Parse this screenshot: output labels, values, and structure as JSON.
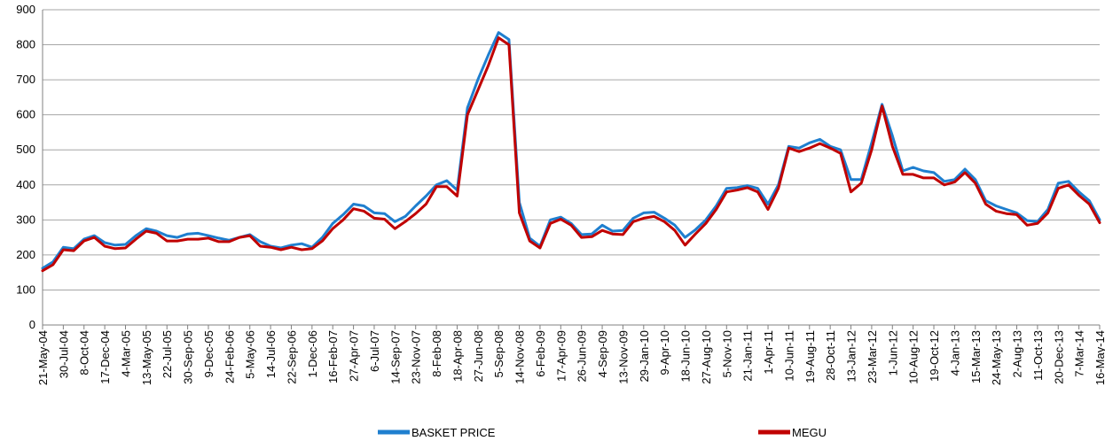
{
  "chart_data": {
    "type": "line",
    "title": "",
    "xlabel": "",
    "ylabel": "",
    "ylim": [
      0,
      900
    ],
    "yticks": [
      0,
      100,
      200,
      300,
      400,
      500,
      600,
      700,
      800,
      900
    ],
    "grid": "horizontal",
    "legend_position": "bottom",
    "x_tick_labels": [
      "21-May-04",
      "30-Jul-04",
      "8-Oct-04",
      "17-Dec-04",
      "4-Mar-05",
      "13-May-05",
      "22-Jul-05",
      "30-Sep-05",
      "9-Dec-05",
      "24-Feb-06",
      "5-May-06",
      "14-Jul-06",
      "22-Sep-06",
      "1-Dec-06",
      "16-Feb-07",
      "27-Apr-07",
      "6-Jul-07",
      "14-Sep-07",
      "23-Nov-07",
      "8-Feb-08",
      "18-Apr-08",
      "27-Jun-08",
      "5-Sep-08",
      "14-Nov-08",
      "6-Feb-09",
      "17-Apr-09",
      "26-Jun-09",
      "4-Sep-09",
      "13-Nov-09",
      "29-Jan-10",
      "9-Apr-10",
      "18-Jun-10",
      "27-Aug-10",
      "5-Nov-10",
      "21-Jan-11",
      "1-Apr-11",
      "10-Jun-11",
      "19-Aug-11",
      "28-Oct-11",
      "13-Jan-12",
      "23-Mar-12",
      "1-Jun-12",
      "10-Aug-12",
      "19-Oct-12",
      "4-Jan-13",
      "15-Mar-13",
      "24-May-13",
      "2-Aug-13",
      "11-Oct-13",
      "20-Dec-13",
      "7-Mar-14",
      "16-May-14"
    ],
    "x_index_range": [
      0,
      51
    ],
    "series": [
      {
        "name": "BASKET PRICE",
        "color": "#1f7fcf",
        "points": [
          [
            0,
            162
          ],
          [
            0.5,
            180
          ],
          [
            1,
            222
          ],
          [
            1.5,
            218
          ],
          [
            2,
            245
          ],
          [
            2.5,
            255
          ],
          [
            3,
            235
          ],
          [
            3.5,
            228
          ],
          [
            4,
            230
          ],
          [
            4.5,
            255
          ],
          [
            5,
            275
          ],
          [
            5.5,
            268
          ],
          [
            6,
            255
          ],
          [
            6.5,
            250
          ],
          [
            7,
            260
          ],
          [
            7.5,
            262
          ],
          [
            8,
            255
          ],
          [
            8.5,
            248
          ],
          [
            9,
            242
          ],
          [
            9.5,
            250
          ],
          [
            10,
            258
          ],
          [
            10.5,
            238
          ],
          [
            11,
            225
          ],
          [
            11.5,
            220
          ],
          [
            12,
            228
          ],
          [
            12.5,
            232
          ],
          [
            13,
            222
          ],
          [
            13.5,
            250
          ],
          [
            14,
            290
          ],
          [
            14.5,
            315
          ],
          [
            15,
            345
          ],
          [
            15.5,
            340
          ],
          [
            16,
            320
          ],
          [
            16.5,
            318
          ],
          [
            17,
            295
          ],
          [
            17.5,
            310
          ],
          [
            18,
            340
          ],
          [
            18.5,
            368
          ],
          [
            19,
            400
          ],
          [
            19.5,
            412
          ],
          [
            20,
            385
          ],
          [
            20.5,
            620
          ],
          [
            21,
            700
          ],
          [
            21.5,
            770
          ],
          [
            22,
            835
          ],
          [
            22.5,
            815
          ],
          [
            23,
            350
          ],
          [
            23.5,
            248
          ],
          [
            24,
            225
          ],
          [
            24.5,
            300
          ],
          [
            25,
            308
          ],
          [
            25.5,
            290
          ],
          [
            26,
            258
          ],
          [
            26.5,
            260
          ],
          [
            27,
            285
          ],
          [
            27.5,
            268
          ],
          [
            28,
            270
          ],
          [
            28.5,
            305
          ],
          [
            29,
            320
          ],
          [
            29.5,
            322
          ],
          [
            30,
            305
          ],
          [
            30.5,
            285
          ],
          [
            31,
            250
          ],
          [
            31.5,
            272
          ],
          [
            32,
            300
          ],
          [
            32.5,
            340
          ],
          [
            33,
            390
          ],
          [
            33.5,
            392
          ],
          [
            34,
            398
          ],
          [
            34.5,
            390
          ],
          [
            35,
            345
          ],
          [
            35.5,
            400
          ],
          [
            36,
            510
          ],
          [
            36.5,
            505
          ],
          [
            37,
            520
          ],
          [
            37.5,
            530
          ],
          [
            38,
            510
          ],
          [
            38.5,
            500
          ],
          [
            39,
            415
          ],
          [
            39.5,
            415
          ],
          [
            40,
            520
          ],
          [
            40.5,
            630
          ],
          [
            41,
            540
          ],
          [
            41.5,
            440
          ],
          [
            42,
            450
          ],
          [
            42.5,
            440
          ],
          [
            43,
            435
          ],
          [
            43.5,
            410
          ],
          [
            44,
            415
          ],
          [
            44.5,
            445
          ],
          [
            45,
            415
          ],
          [
            45.5,
            355
          ],
          [
            46,
            340
          ],
          [
            46.5,
            330
          ],
          [
            47,
            320
          ],
          [
            47.5,
            298
          ],
          [
            48,
            295
          ],
          [
            48.5,
            330
          ],
          [
            49,
            405
          ],
          [
            49.5,
            410
          ],
          [
            50,
            380
          ],
          [
            50.5,
            355
          ],
          [
            51,
            300
          ]
        ]
      },
      {
        "name": "MEGU",
        "color": "#c00000",
        "points": [
          [
            0,
            155
          ],
          [
            0.5,
            172
          ],
          [
            1,
            215
          ],
          [
            1.5,
            212
          ],
          [
            2,
            240
          ],
          [
            2.5,
            250
          ],
          [
            3,
            225
          ],
          [
            3.5,
            218
          ],
          [
            4,
            220
          ],
          [
            4.5,
            245
          ],
          [
            5,
            268
          ],
          [
            5.5,
            262
          ],
          [
            6,
            240
          ],
          [
            6.5,
            240
          ],
          [
            7,
            245
          ],
          [
            7.5,
            245
          ],
          [
            8,
            248
          ],
          [
            8.5,
            238
          ],
          [
            9,
            238
          ],
          [
            9.5,
            250
          ],
          [
            10,
            255
          ],
          [
            10.5,
            225
          ],
          [
            11,
            222
          ],
          [
            11.5,
            215
          ],
          [
            12,
            222
          ],
          [
            12.5,
            215
          ],
          [
            13,
            218
          ],
          [
            13.5,
            240
          ],
          [
            14,
            275
          ],
          [
            14.5,
            300
          ],
          [
            15,
            332
          ],
          [
            15.5,
            325
          ],
          [
            16,
            305
          ],
          [
            16.5,
            302
          ],
          [
            17,
            275
          ],
          [
            17.5,
            295
          ],
          [
            18,
            318
          ],
          [
            18.5,
            345
          ],
          [
            19,
            395
          ],
          [
            19.5,
            395
          ],
          [
            20,
            368
          ],
          [
            20.5,
            600
          ],
          [
            21,
            670
          ],
          [
            21.5,
            740
          ],
          [
            22,
            820
          ],
          [
            22.5,
            800
          ],
          [
            23,
            320
          ],
          [
            23.5,
            240
          ],
          [
            24,
            220
          ],
          [
            24.5,
            290
          ],
          [
            25,
            302
          ],
          [
            25.5,
            285
          ],
          [
            26,
            250
          ],
          [
            26.5,
            252
          ],
          [
            27,
            270
          ],
          [
            27.5,
            260
          ],
          [
            28,
            258
          ],
          [
            28.5,
            295
          ],
          [
            29,
            305
          ],
          [
            29.5,
            310
          ],
          [
            30,
            295
          ],
          [
            30.5,
            270
          ],
          [
            31,
            228
          ],
          [
            31.5,
            260
          ],
          [
            32,
            290
          ],
          [
            32.5,
            330
          ],
          [
            33,
            380
          ],
          [
            33.5,
            385
          ],
          [
            34,
            392
          ],
          [
            34.5,
            380
          ],
          [
            35,
            330
          ],
          [
            35.5,
            390
          ],
          [
            36,
            505
          ],
          [
            36.5,
            495
          ],
          [
            37,
            505
          ],
          [
            37.5,
            518
          ],
          [
            38,
            505
          ],
          [
            38.5,
            490
          ],
          [
            39,
            380
          ],
          [
            39.5,
            405
          ],
          [
            40,
            500
          ],
          [
            40.5,
            625
          ],
          [
            41,
            510
          ],
          [
            41.5,
            430
          ],
          [
            42,
            430
          ],
          [
            42.5,
            420
          ],
          [
            43,
            420
          ],
          [
            43.5,
            400
          ],
          [
            44,
            408
          ],
          [
            44.5,
            435
          ],
          [
            45,
            405
          ],
          [
            45.5,
            345
          ],
          [
            46,
            325
          ],
          [
            46.5,
            318
          ],
          [
            47,
            315
          ],
          [
            47.5,
            285
          ],
          [
            48,
            290
          ],
          [
            48.5,
            320
          ],
          [
            49,
            390
          ],
          [
            49.5,
            400
          ],
          [
            50,
            370
          ],
          [
            50.5,
            345
          ],
          [
            51,
            292
          ]
        ]
      }
    ]
  }
}
